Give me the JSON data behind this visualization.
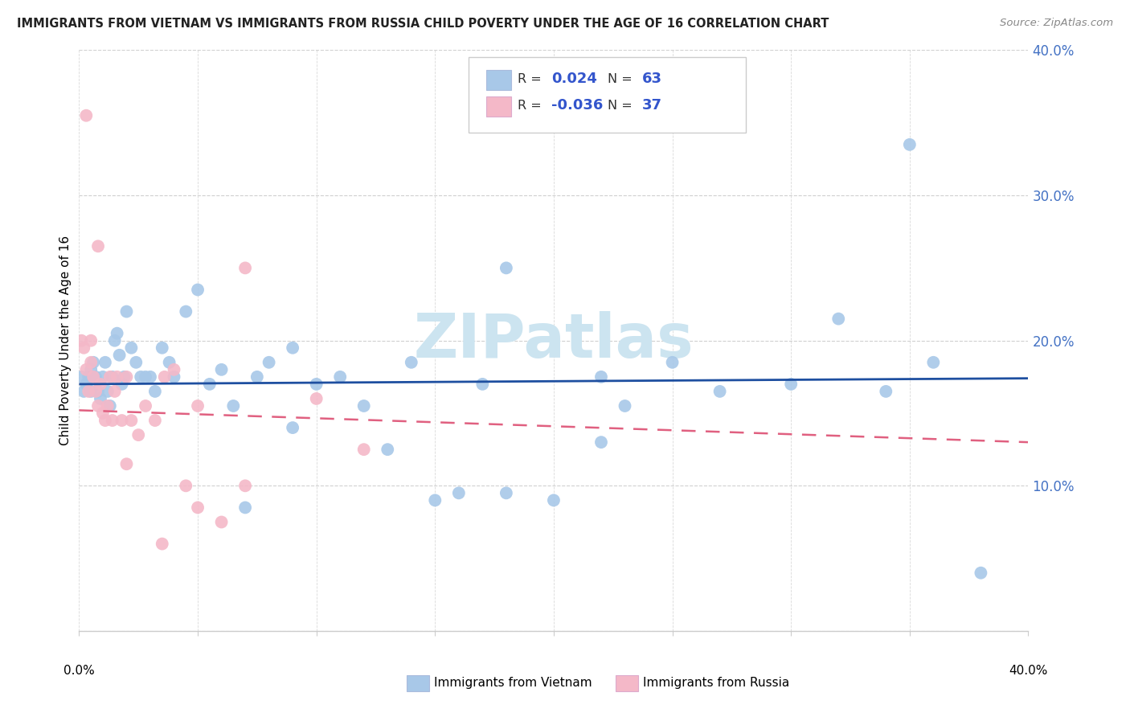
{
  "title": "IMMIGRANTS FROM VIETNAM VS IMMIGRANTS FROM RUSSIA CHILD POVERTY UNDER THE AGE OF 16 CORRELATION CHART",
  "source": "Source: ZipAtlas.com",
  "ylabel": "Child Poverty Under the Age of 16",
  "vietnam_color": "#a8c8e8",
  "russia_color": "#f4b8c8",
  "vietnam_line_color": "#1e4fa0",
  "russia_line_color": "#e06080",
  "label_color": "#3355cc",
  "yaxis_tick_color": "#4472c4",
  "watermark_color": "#cce4f0",
  "xlim": [
    0.0,
    0.4
  ],
  "ylim": [
    0.0,
    0.4
  ],
  "yticks": [
    0.0,
    0.1,
    0.2,
    0.3,
    0.4
  ],
  "ytick_labels": [
    "",
    "10.0%",
    "20.0%",
    "30.0%",
    "40.0%"
  ],
  "vietnam_R": "0.024",
  "vietnam_N": "63",
  "russia_R": "-0.036",
  "russia_N": "37",
  "vietnam_x": [
    0.001,
    0.002,
    0.003,
    0.004,
    0.005,
    0.005,
    0.006,
    0.007,
    0.008,
    0.009,
    0.01,
    0.011,
    0.012,
    0.013,
    0.014,
    0.015,
    0.016,
    0.017,
    0.018,
    0.019,
    0.02,
    0.022,
    0.024,
    0.026,
    0.028,
    0.03,
    0.032,
    0.035,
    0.038,
    0.04,
    0.045,
    0.05,
    0.055,
    0.06,
    0.065,
    0.07,
    0.075,
    0.08,
    0.09,
    0.1,
    0.11,
    0.12,
    0.13,
    0.14,
    0.15,
    0.16,
    0.17,
    0.18,
    0.2,
    0.22,
    0.23,
    0.25,
    0.27,
    0.3,
    0.32,
    0.34,
    0.36,
    0.38,
    0.005,
    0.09,
    0.18,
    0.35,
    0.22
  ],
  "vietnam_y": [
    0.175,
    0.165,
    0.17,
    0.175,
    0.165,
    0.18,
    0.185,
    0.175,
    0.165,
    0.16,
    0.175,
    0.185,
    0.165,
    0.155,
    0.175,
    0.2,
    0.205,
    0.19,
    0.17,
    0.175,
    0.22,
    0.195,
    0.185,
    0.175,
    0.175,
    0.175,
    0.165,
    0.195,
    0.185,
    0.175,
    0.22,
    0.235,
    0.17,
    0.18,
    0.155,
    0.085,
    0.175,
    0.185,
    0.14,
    0.17,
    0.175,
    0.155,
    0.125,
    0.185,
    0.09,
    0.095,
    0.17,
    0.095,
    0.09,
    0.13,
    0.155,
    0.185,
    0.165,
    0.17,
    0.215,
    0.165,
    0.185,
    0.04,
    0.175,
    0.195,
    0.25,
    0.335,
    0.175
  ],
  "russia_x": [
    0.001,
    0.002,
    0.003,
    0.003,
    0.004,
    0.005,
    0.005,
    0.006,
    0.007,
    0.008,
    0.008,
    0.009,
    0.01,
    0.011,
    0.012,
    0.013,
    0.014,
    0.015,
    0.016,
    0.018,
    0.02,
    0.022,
    0.025,
    0.028,
    0.032,
    0.036,
    0.04,
    0.045,
    0.05,
    0.06,
    0.07,
    0.1,
    0.12,
    0.02,
    0.035,
    0.05,
    0.07
  ],
  "russia_y": [
    0.2,
    0.195,
    0.355,
    0.18,
    0.165,
    0.2,
    0.185,
    0.175,
    0.165,
    0.155,
    0.265,
    0.17,
    0.15,
    0.145,
    0.155,
    0.175,
    0.145,
    0.165,
    0.175,
    0.145,
    0.175,
    0.145,
    0.135,
    0.155,
    0.145,
    0.175,
    0.18,
    0.1,
    0.085,
    0.075,
    0.1,
    0.16,
    0.125,
    0.115,
    0.06,
    0.155,
    0.25
  ]
}
